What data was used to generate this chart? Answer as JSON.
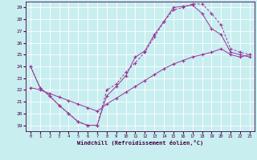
{
  "xlabel": "Windchill (Refroidissement éolien,°C)",
  "xlim": [
    -0.5,
    23.5
  ],
  "ylim": [
    18.5,
    29.5
  ],
  "yticks": [
    19,
    20,
    21,
    22,
    23,
    24,
    25,
    26,
    27,
    28,
    29
  ],
  "xticks": [
    0,
    1,
    2,
    3,
    4,
    5,
    6,
    7,
    8,
    9,
    10,
    11,
    12,
    13,
    14,
    15,
    16,
    17,
    18,
    19,
    20,
    21,
    22,
    23
  ],
  "bg_color": "#c8eef0",
  "grid_color": "#ffffff",
  "line_color": "#993399",
  "curve1_x": [
    0,
    1,
    2,
    3,
    4,
    5,
    6,
    7,
    8,
    9,
    10,
    11,
    12,
    13,
    14,
    15,
    16,
    17,
    18,
    19,
    20,
    21,
    22,
    23
  ],
  "curve1_y": [
    24.0,
    22.2,
    21.5,
    20.7,
    20.0,
    19.3,
    19.0,
    19.0,
    21.5,
    22.3,
    23.2,
    24.8,
    25.3,
    26.7,
    27.8,
    29.0,
    29.1,
    29.2,
    28.5,
    27.2,
    26.7,
    25.2,
    25.0,
    24.8
  ],
  "curve2_x": [
    0,
    1,
    2,
    3,
    4,
    5,
    6,
    7,
    8,
    9,
    10,
    11,
    12,
    13,
    14,
    15,
    16,
    17,
    18,
    19,
    20,
    21,
    22,
    23
  ],
  "curve2_y": [
    24.0,
    22.2,
    21.5,
    20.7,
    20.0,
    19.3,
    19.0,
    19.0,
    22.0,
    22.5,
    23.5,
    24.3,
    25.2,
    26.5,
    27.8,
    28.8,
    29.0,
    29.3,
    29.3,
    28.5,
    27.5,
    25.5,
    25.2,
    25.0
  ],
  "curve3_x": [
    0,
    1,
    2,
    3,
    4,
    5,
    6,
    7,
    8,
    9,
    10,
    11,
    12,
    13,
    14,
    15,
    16,
    17,
    18,
    19,
    20,
    21,
    22,
    23
  ],
  "curve3_y": [
    22.2,
    22.0,
    21.7,
    21.4,
    21.1,
    20.8,
    20.5,
    20.2,
    20.8,
    21.3,
    21.8,
    22.3,
    22.8,
    23.3,
    23.8,
    24.2,
    24.5,
    24.8,
    25.0,
    25.2,
    25.5,
    25.0,
    24.8,
    25.0
  ]
}
